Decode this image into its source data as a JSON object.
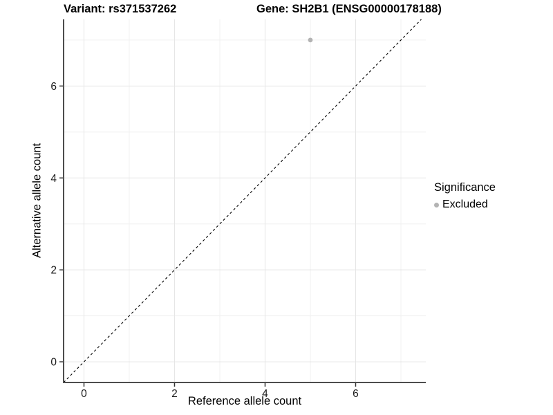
{
  "titles": {
    "variant": "Variant: rs371537262",
    "gene": "Gene: SH2B1 (ENSG00000178188)"
  },
  "chart_data": {
    "type": "scatter",
    "xlabel": "Reference allele count",
    "ylabel": "Alternative allele count",
    "xlim": [
      -0.45,
      7.55
    ],
    "ylim": [
      -0.45,
      7.45
    ],
    "x_major_ticks": [
      0,
      2,
      4,
      6
    ],
    "y_major_ticks": [
      0,
      2,
      4,
      6
    ],
    "x_minor_gridlines": [
      1,
      3,
      5,
      7
    ],
    "y_minor_gridlines": [
      1,
      3,
      5,
      7
    ],
    "grid": "major+minor",
    "identity_line": {
      "slope": 1,
      "intercept": 0,
      "style": "dashed",
      "color": "#000000"
    },
    "series": [
      {
        "name": "Excluded",
        "color": "#b3b3b3",
        "points": [
          {
            "x": 5,
            "y": 7
          }
        ]
      }
    ],
    "legend": {
      "title": "Significance",
      "position": "right",
      "items": [
        {
          "label": "Excluded",
          "color": "#b3b3b3"
        }
      ]
    }
  },
  "colors": {
    "background": "#ffffff",
    "major_grid": "#e5e5e5",
    "minor_grid": "#f0f0f0",
    "axis_line": "#4d4d4d",
    "tick_mark": "#333333",
    "tick_label": "#1a1a1a",
    "point": "#b3b3b3",
    "identity_line": "#000000"
  }
}
